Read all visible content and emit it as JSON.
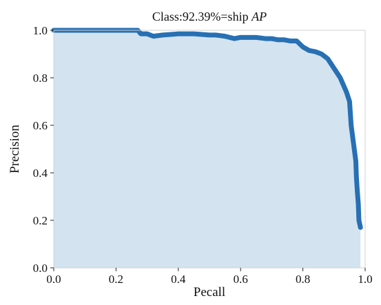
{
  "chart_data": {
    "type": "area",
    "title": "Class:92.39%=ship ",
    "title_suffix": "AP",
    "xlabel": "Pecall",
    "ylabel": "Precision",
    "xlim": [
      0.0,
      1.0
    ],
    "ylim": [
      0.0,
      1.0
    ],
    "xticks": [
      "0.0",
      "0.2",
      "0.4",
      "0.6",
      "0.8",
      "1.0"
    ],
    "yticks": [
      "0.0",
      "0.2",
      "0.4",
      "0.6",
      "0.8",
      "1.0"
    ],
    "grid": false,
    "legend": "none",
    "series": [
      {
        "line_color": "#2770b3",
        "fill_color": "#d3e3f0",
        "x": [
          0.0,
          0.05,
          0.1,
          0.15,
          0.2,
          0.25,
          0.27,
          0.28,
          0.3,
          0.32,
          0.35,
          0.4,
          0.45,
          0.5,
          0.52,
          0.55,
          0.58,
          0.6,
          0.62,
          0.65,
          0.68,
          0.7,
          0.72,
          0.74,
          0.76,
          0.78,
          0.8,
          0.82,
          0.84,
          0.86,
          0.87,
          0.88,
          0.89,
          0.9,
          0.91,
          0.92,
          0.93,
          0.94,
          0.95,
          0.955,
          0.96,
          0.965,
          0.97,
          0.972,
          0.975,
          0.978,
          0.98,
          0.985
        ],
        "y": [
          1.0,
          1.0,
          1.0,
          1.0,
          1.0,
          1.0,
          1.0,
          0.985,
          0.985,
          0.975,
          0.98,
          0.985,
          0.985,
          0.98,
          0.98,
          0.975,
          0.965,
          0.97,
          0.97,
          0.97,
          0.965,
          0.965,
          0.96,
          0.96,
          0.955,
          0.955,
          0.93,
          0.915,
          0.91,
          0.9,
          0.89,
          0.88,
          0.86,
          0.84,
          0.82,
          0.8,
          0.77,
          0.74,
          0.7,
          0.6,
          0.55,
          0.5,
          0.45,
          0.38,
          0.32,
          0.27,
          0.2,
          0.17
        ]
      }
    ]
  }
}
